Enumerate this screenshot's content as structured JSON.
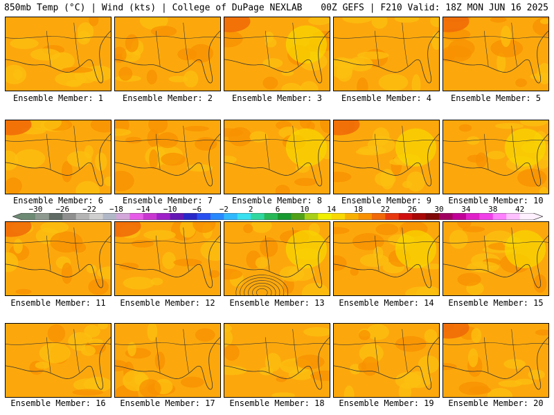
{
  "header": {
    "left": "850mb Temp (°C) | Wind (kts) | College of DuPage NEXLAB",
    "right": "00Z GEFS | F210 Valid: 18Z MON JUN 16 2025"
  },
  "colorbar": {
    "labels": [
      "-30",
      "-26",
      "-22",
      "-18",
      "-14",
      "-10",
      "-6",
      "-2",
      "2",
      "6",
      "10",
      "14",
      "18",
      "22",
      "26",
      "30",
      "34",
      "38",
      "42"
    ],
    "colors": [
      "#6d8a74",
      "#8d998f",
      "#5f6b64",
      "#8f8f8f",
      "#b4b4b4",
      "#cfcfcf",
      "#b0b8c8",
      "#d3a7d9",
      "#e65ce8",
      "#c838d0",
      "#9e22c8",
      "#6418b4",
      "#2828c8",
      "#2850f0",
      "#2888ff",
      "#30b8ff",
      "#38e0f0",
      "#30d8a0",
      "#28b858",
      "#189830",
      "#50a018",
      "#a8d018",
      "#f0f000",
      "#f8d800",
      "#f8b000",
      "#f89000",
      "#f06808",
      "#e83810",
      "#d01010",
      "#a80808",
      "#800808",
      "#a00060",
      "#c00098",
      "#e020c8",
      "#f040e8",
      "#ff80ff",
      "#ffc0ff",
      "#fff0ff"
    ]
  },
  "members": [
    {
      "caption": "Ensemble Member: 1"
    },
    {
      "caption": "Ensemble Member: 2"
    },
    {
      "caption": "Ensemble Member: 3"
    },
    {
      "caption": "Ensemble Member: 4"
    },
    {
      "caption": "Ensemble Member: 5"
    },
    {
      "caption": "Ensemble Member: 6"
    },
    {
      "caption": "Ensemble Member: 7"
    },
    {
      "caption": "Ensemble Member: 8"
    },
    {
      "caption": "Ensemble Member: 9"
    },
    {
      "caption": "Ensemble Member: 10"
    },
    {
      "caption": "Ensemble Member: 11"
    },
    {
      "caption": "Ensemble Member: 12"
    },
    {
      "caption": "Ensemble Member: 13"
    },
    {
      "caption": "Ensemble Member: 14"
    },
    {
      "caption": "Ensemble Member: 15"
    },
    {
      "caption": "Ensemble Member: 16"
    },
    {
      "caption": "Ensemble Member: 17"
    },
    {
      "caption": "Ensemble Member: 18"
    },
    {
      "caption": "Ensemble Member: 19"
    },
    {
      "caption": "Ensemble Member: 20"
    }
  ]
}
